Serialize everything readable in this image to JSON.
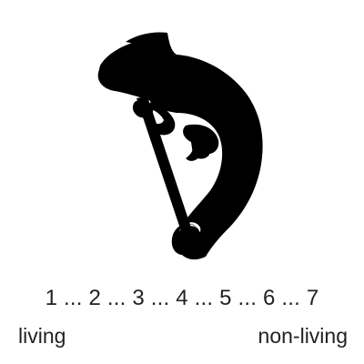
{
  "stimulus": {
    "icon": "chameleon-silhouette-icon",
    "fill": "#000000"
  },
  "scale": {
    "text": "1 ... 2 ... 3 ... 4 ... 5 ... 6 ... 7",
    "left_anchor": "living",
    "right_anchor": "non-living"
  }
}
